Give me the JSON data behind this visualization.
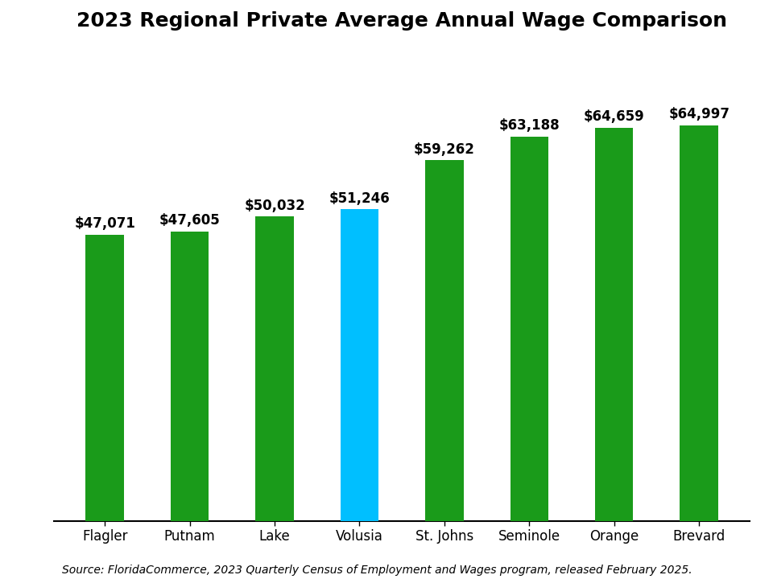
{
  "title": "2023 Regional Private Average Annual Wage Comparison",
  "categories": [
    "Flagler",
    "Putnam",
    "Lake",
    "Volusia",
    "St. Johns",
    "Seminole",
    "Orange",
    "Brevard"
  ],
  "values": [
    47071,
    47605,
    50032,
    51246,
    59262,
    63188,
    64659,
    64997
  ],
  "labels": [
    "$47,071",
    "$47,605",
    "$50,032",
    "$51,246",
    "$59,262",
    "$63,188",
    "$64,659",
    "$64,997"
  ],
  "bar_colors": [
    "#1a9b1a",
    "#1a9b1a",
    "#1a9b1a",
    "#00bfff",
    "#1a9b1a",
    "#1a9b1a",
    "#1a9b1a",
    "#1a9b1a"
  ],
  "source_text": "Source: FloridaCommerce, 2023 Quarterly Census of Employment and Wages program, released February 2025.",
  "title_fontsize": 18,
  "label_fontsize": 12,
  "tick_fontsize": 12,
  "source_fontsize": 10,
  "ylim": [
    0,
    78000
  ],
  "background_color": "#ffffff"
}
